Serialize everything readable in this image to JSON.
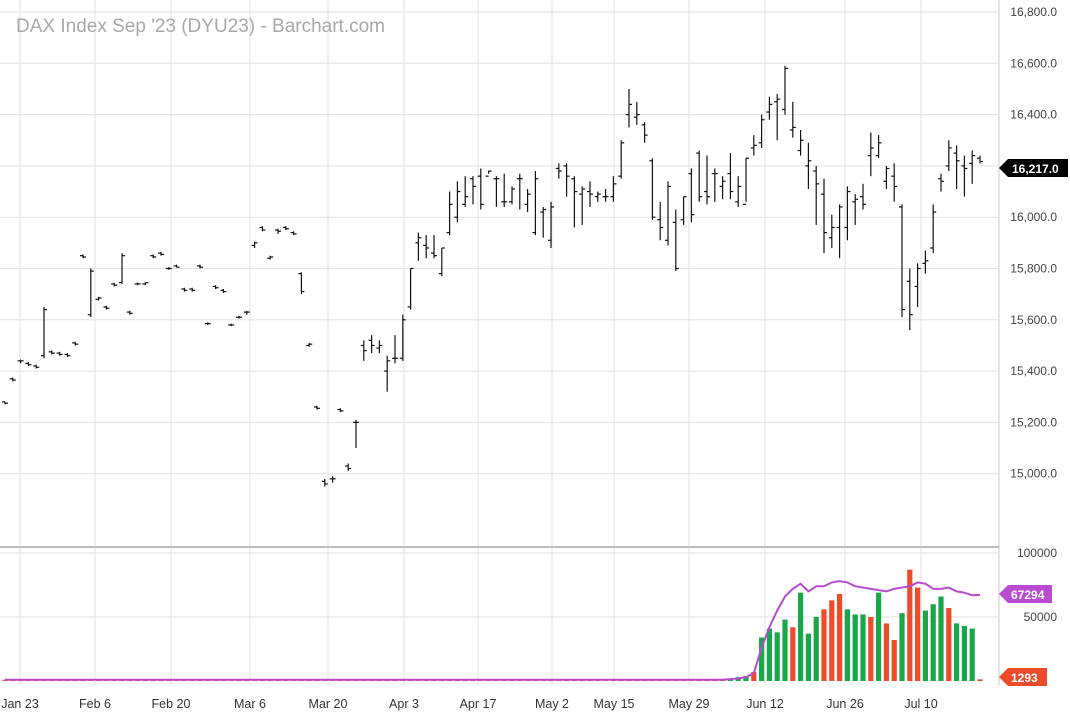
{
  "title": "DAX Index Sep '23 (DYU23) - Barchart.com",
  "colors": {
    "candle": "#111111",
    "vol_up": "#18a84a",
    "vol_down": "#ee4b2b",
    "vol_avg": "#b94bd1",
    "grid": "#e2e2e2",
    "last_price_badge": "#000000",
    "avg_badge": "#b94bd1",
    "vol_badge": "#ee4b2b"
  },
  "chart_data": [
    {
      "type": "ohlc",
      "title": "DAX Index Sep '23 (DYU23) - Barchart.com",
      "ylim": [
        14800,
        16800
      ],
      "y_ticks": [
        "16,800.0",
        "16,600.0",
        "16,400.0",
        "16,200.0",
        "16,000.0",
        "15,800.0",
        "15,600.0",
        "15,400.0",
        "15,200.0",
        "15,000.0"
      ],
      "x_ticks": [
        "Jan 23",
        "Feb 6",
        "Feb 20",
        "Mar 6",
        "Mar 20",
        "Apr 3",
        "Apr 17",
        "May 2",
        "May 15",
        "May 29",
        "Jun 12",
        "Jun 26",
        "Jul 10"
      ],
      "last_price": "16,217.0",
      "grid": true,
      "ohlc": [
        [
          15280,
          15280,
          15270,
          15275
        ],
        [
          15370,
          15375,
          15360,
          15365
        ],
        [
          15440,
          15445,
          15430,
          15440
        ],
        [
          15430,
          15435,
          15420,
          15425
        ],
        [
          15420,
          15425,
          15410,
          15415
        ],
        [
          15460,
          15650,
          15450,
          15640
        ],
        [
          15475,
          15480,
          15465,
          15470
        ],
        [
          15470,
          15475,
          15460,
          15465
        ],
        [
          15465,
          15470,
          15455,
          15460
        ],
        [
          15510,
          15515,
          15500,
          15505
        ],
        [
          15850,
          15855,
          15840,
          15845
        ],
        [
          15620,
          15800,
          15610,
          15790
        ],
        [
          15680,
          15690,
          15675,
          15685
        ],
        [
          15650,
          15655,
          15640,
          15645
        ],
        [
          15740,
          15745,
          15730,
          15735
        ],
        [
          15745,
          15860,
          15740,
          15850
        ],
        [
          15630,
          15635,
          15620,
          15625
        ],
        [
          15740,
          15745,
          15735,
          15740
        ],
        [
          15740,
          15745,
          15735,
          15745
        ],
        [
          15850,
          15855,
          15840,
          15845
        ],
        [
          15860,
          15865,
          15850,
          15855
        ],
        [
          15800,
          15805,
          15795,
          15800
        ],
        [
          15810,
          15815,
          15805,
          15805
        ],
        [
          15720,
          15725,
          15710,
          15715
        ],
        [
          15720,
          15725,
          15710,
          15715
        ],
        [
          15810,
          15815,
          15800,
          15805
        ],
        [
          15585,
          15590,
          15580,
          15585
        ],
        [
          15730,
          15735,
          15720,
          15725
        ],
        [
          15715,
          15720,
          15705,
          15710
        ],
        [
          15580,
          15585,
          15575,
          15580
        ],
        [
          15610,
          15615,
          15605,
          15610
        ],
        [
          15630,
          15635,
          15620,
          15630
        ],
        [
          15890,
          15905,
          15880,
          15900
        ],
        [
          15960,
          15965,
          15945,
          15950
        ],
        [
          15840,
          15850,
          15835,
          15845
        ],
        [
          15950,
          15955,
          15935,
          15945
        ],
        [
          15960,
          15965,
          15950,
          15955
        ],
        [
          15940,
          15945,
          15930,
          15935
        ],
        [
          15780,
          15785,
          15700,
          15710
        ],
        [
          15500,
          15510,
          15495,
          15505
        ],
        [
          15260,
          15265,
          15250,
          15255
        ],
        [
          14970,
          14980,
          14950,
          14960
        ],
        [
          14980,
          14990,
          14965,
          14980
        ],
        [
          15250,
          15255,
          15240,
          15245
        ],
        [
          15030,
          15040,
          15010,
          15020
        ],
        [
          15200,
          15210,
          15100,
          15200
        ],
        [
          15500,
          15520,
          15440,
          15480
        ],
        [
          15520,
          15540,
          15470,
          15500
        ],
        [
          15490,
          15520,
          15470,
          15500
        ],
        [
          15400,
          15460,
          15320,
          15440
        ],
        [
          15450,
          15540,
          15430,
          15450
        ],
        [
          15450,
          15620,
          15440,
          15600
        ],
        [
          15650,
          15800,
          15640,
          15800
        ],
        [
          15900,
          15940,
          15830,
          15920
        ],
        [
          15890,
          15930,
          15840,
          15880
        ],
        [
          15860,
          15930,
          15840,
          15850
        ],
        [
          15780,
          15880,
          15770,
          15880
        ],
        [
          15940,
          16100,
          15930,
          16050
        ],
        [
          16000,
          16140,
          15980,
          16100
        ],
        [
          16050,
          16160,
          16040,
          16080
        ],
        [
          16150,
          16160,
          16050,
          16120
        ],
        [
          16160,
          16190,
          16030,
          16050
        ],
        [
          16160,
          16180,
          16170,
          16180
        ],
        [
          16150,
          16160,
          16040,
          16150
        ],
        [
          16060,
          16170,
          16040,
          16060
        ],
        [
          16060,
          16120,
          16050,
          16110
        ],
        [
          16150,
          16170,
          16030,
          16150
        ],
        [
          16050,
          16110,
          16020,
          16090
        ],
        [
          15940,
          16180,
          15930,
          16150
        ],
        [
          16020,
          16040,
          15920,
          16030
        ],
        [
          15910,
          16060,
          15880,
          16040
        ],
        [
          16190,
          16210,
          16150,
          16180
        ],
        [
          16200,
          16210,
          16080,
          16160
        ],
        [
          16150,
          16160,
          15960,
          16100
        ],
        [
          16090,
          16120,
          15970,
          16110
        ],
        [
          16100,
          16140,
          16040,
          16090
        ],
        [
          16080,
          16100,
          16060,
          16090
        ],
        [
          16080,
          16110,
          16060,
          16080
        ],
        [
          16080,
          16160,
          16060,
          16130
        ],
        [
          16160,
          16300,
          16150,
          16290
        ],
        [
          16400,
          16500,
          16350,
          16440
        ],
        [
          16390,
          16450,
          16360,
          16400
        ],
        [
          16360,
          16370,
          16290,
          16320
        ],
        [
          16220,
          16230,
          15990,
          16000
        ],
        [
          15990,
          16060,
          15910,
          15960
        ],
        [
          15910,
          16140,
          15890,
          16120
        ],
        [
          15980,
          16030,
          15790,
          15800
        ],
        [
          15990,
          16080,
          15970,
          16080
        ],
        [
          16170,
          16190,
          15980,
          16010
        ],
        [
          16250,
          16260,
          16060,
          16080
        ],
        [
          16100,
          16240,
          16050,
          16080
        ],
        [
          16170,
          16190,
          16060,
          16170
        ],
        [
          16120,
          16160,
          16070,
          16140
        ],
        [
          16170,
          16250,
          16070,
          16100
        ],
        [
          16060,
          16160,
          16040,
          16120
        ],
        [
          16050,
          16230,
          16060,
          16230
        ],
        [
          16270,
          16320,
          16240,
          16280
        ],
        [
          16290,
          16400,
          16270,
          16380
        ],
        [
          16410,
          16470,
          16380,
          16440
        ],
        [
          16450,
          16480,
          16300,
          16460
        ],
        [
          16420,
          16590,
          16400,
          16580
        ],
        [
          16340,
          16450,
          16310,
          16350
        ],
        [
          16260,
          16340,
          16240,
          16300
        ],
        [
          16200,
          16290,
          16110,
          16220
        ],
        [
          16180,
          16200,
          15970,
          16130
        ],
        [
          16090,
          16150,
          15860,
          15940
        ],
        [
          15920,
          16010,
          15880,
          15960
        ],
        [
          15960,
          16050,
          15840,
          16040
        ],
        [
          15960,
          16120,
          15910,
          16100
        ],
        [
          16060,
          16090,
          15970,
          16070
        ],
        [
          16080,
          16130,
          16030,
          16050
        ],
        [
          16240,
          16330,
          16160,
          16270
        ],
        [
          16240,
          16320,
          16230,
          16290
        ],
        [
          16140,
          16200,
          16110,
          16190
        ],
        [
          16160,
          16210,
          16060,
          16120
        ],
        [
          16040,
          16050,
          15610,
          15640
        ],
        [
          15750,
          15800,
          15560,
          15620
        ],
        [
          15730,
          15820,
          15650,
          15800
        ],
        [
          15820,
          15870,
          15780,
          15830
        ],
        [
          15880,
          16050,
          15860,
          16020
        ],
        [
          16150,
          16170,
          16100,
          16140
        ],
        [
          16200,
          16300,
          16180,
          16270
        ],
        [
          16250,
          16280,
          16110,
          16220
        ],
        [
          16200,
          16240,
          16080,
          16190
        ],
        [
          16210,
          16260,
          16130,
          16240
        ],
        [
          16230,
          16240,
          16210,
          16217
        ]
      ]
    },
    {
      "type": "bar",
      "title": "",
      "ylim": [
        0,
        100000
      ],
      "y_ticks": [
        "100000",
        "50000"
      ],
      "avg_label": "67294",
      "volume_label": "1293",
      "volume": [
        1000,
        1000,
        1000,
        1000,
        1000,
        1000,
        1000,
        1000,
        1000,
        1000,
        1000,
        1000,
        1000,
        1000,
        1000,
        1000,
        1000,
        1000,
        1000,
        1000,
        1000,
        1000,
        1000,
        1000,
        1000,
        1000,
        1000,
        1000,
        1000,
        1000,
        1000,
        1000,
        1000,
        1000,
        1000,
        1000,
        1000,
        1000,
        1000,
        1000,
        1000,
        1000,
        1000,
        1000,
        1000,
        1000,
        1000,
        1000,
        1000,
        1000,
        1000,
        1000,
        1000,
        1000,
        1000,
        1000,
        1000,
        1000,
        1000,
        1000,
        1000,
        1000,
        1000,
        1000,
        1000,
        1000,
        1000,
        1000,
        1000,
        1000,
        1000,
        1000,
        1000,
        1000,
        1000,
        1000,
        1000,
        1000,
        1000,
        1000,
        1000,
        1000,
        1000,
        1000,
        1000,
        1000,
        1000,
        1000,
        1000,
        1000,
        1000,
        1000,
        1000,
        2000,
        3000,
        4000,
        7000,
        34000,
        41000,
        38000,
        48000,
        42000,
        69000,
        37000,
        50000,
        56000,
        63000,
        68000,
        56000,
        52000,
        52000,
        50000,
        69000,
        45000,
        32000,
        53000,
        87000,
        73000,
        55000,
        60000,
        66000,
        57000,
        45000,
        43000,
        41000,
        1293
      ],
      "volume_up": [
        false,
        false,
        false,
        false,
        false,
        false,
        false,
        false,
        false,
        false,
        false,
        false,
        false,
        false,
        false,
        false,
        false,
        false,
        false,
        false,
        false,
        false,
        false,
        false,
        false,
        false,
        false,
        false,
        false,
        false,
        false,
        false,
        false,
        false,
        false,
        false,
        false,
        false,
        false,
        false,
        false,
        false,
        false,
        false,
        false,
        false,
        false,
        false,
        false,
        false,
        false,
        false,
        false,
        false,
        false,
        false,
        false,
        false,
        false,
        false,
        false,
        false,
        false,
        false,
        false,
        false,
        false,
        false,
        false,
        false,
        false,
        false,
        false,
        false,
        false,
        false,
        false,
        false,
        false,
        false,
        false,
        false,
        false,
        false,
        false,
        false,
        false,
        false,
        false,
        false,
        false,
        false,
        false,
        true,
        true,
        true,
        false,
        true,
        true,
        true,
        true,
        false,
        true,
        true,
        true,
        false,
        false,
        false,
        true,
        true,
        true,
        false,
        true,
        false,
        false,
        true,
        false,
        false,
        true,
        true,
        true,
        false,
        true,
        true,
        true,
        false
      ],
      "average": [
        1000,
        1000,
        1000,
        1000,
        1000,
        1000,
        1000,
        1000,
        1000,
        1000,
        1000,
        1000,
        1000,
        1000,
        1000,
        1000,
        1000,
        1000,
        1000,
        1000,
        1000,
        1000,
        1000,
        1000,
        1000,
        1000,
        1000,
        1000,
        1000,
        1000,
        1000,
        1000,
        1000,
        1000,
        1000,
        1000,
        1000,
        1000,
        1000,
        1000,
        1000,
        1000,
        1000,
        1000,
        1000,
        1000,
        1000,
        1000,
        1000,
        1000,
        1000,
        1000,
        1000,
        1000,
        1000,
        1000,
        1000,
        1000,
        1000,
        1000,
        1000,
        1000,
        1000,
        1000,
        1000,
        1000,
        1000,
        1000,
        1000,
        1000,
        1000,
        1000,
        1000,
        1000,
        1000,
        1000,
        1000,
        1000,
        1000,
        1000,
        1000,
        1000,
        1000,
        1000,
        1000,
        1000,
        1000,
        1000,
        1000,
        1000,
        1000,
        1000,
        1000,
        1500,
        2000,
        3000,
        6000,
        26000,
        42000,
        55000,
        66000,
        72000,
        76000,
        70000,
        74000,
        74000,
        77000,
        78000,
        77000,
        74000,
        73000,
        72000,
        71000,
        70000,
        72000,
        73000,
        74000,
        77000,
        76000,
        72000,
        72000,
        73000,
        70000,
        69000,
        67000,
        67294
      ]
    }
  ]
}
